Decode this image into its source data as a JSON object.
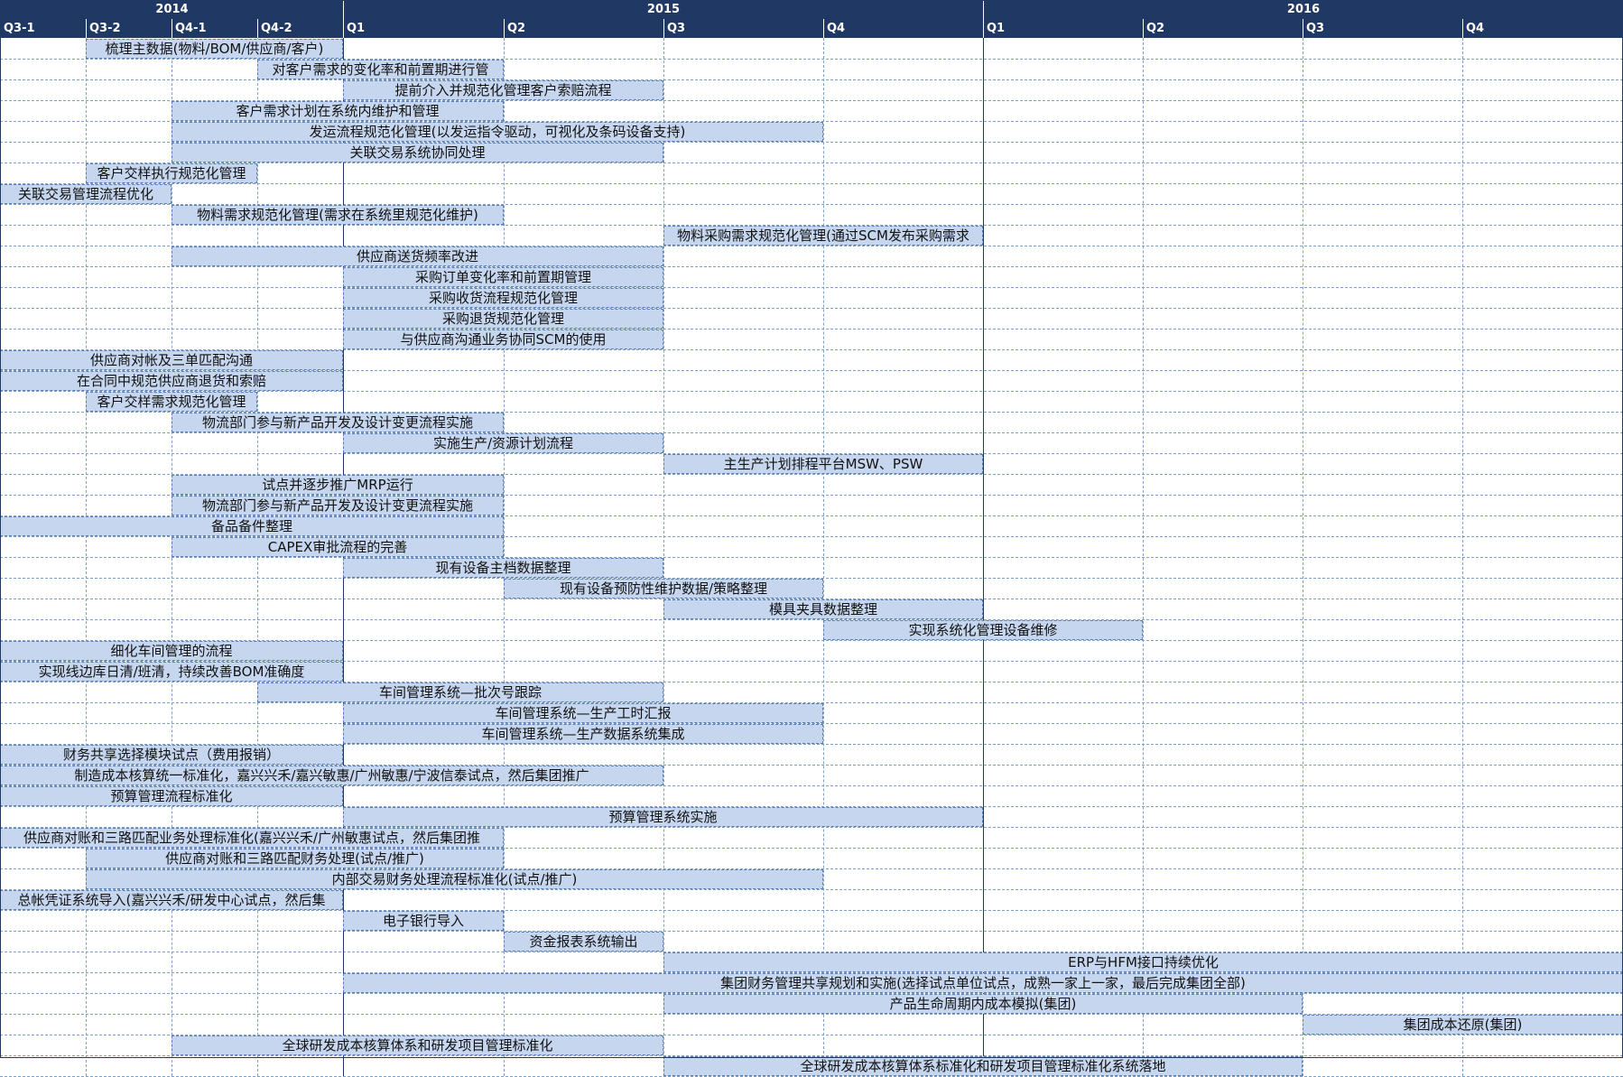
{
  "header": {
    "years": [
      {
        "label": "2014",
        "start": 0,
        "end": 4
      },
      {
        "label": "2015",
        "start": 4,
        "end": 8
      },
      {
        "label": "2016",
        "start": 8,
        "end": 12
      }
    ],
    "quarters": [
      "Q3-1",
      "Q3-2",
      "Q4-1",
      "Q4-2",
      "Q1",
      "Q2",
      "Q3",
      "Q4",
      "Q1",
      "Q2",
      "Q3",
      "Q4"
    ]
  },
  "colors": {
    "header_bg": "#1f3864",
    "bar_fill": "#c5d6ee",
    "bar_border": "#5a7fb0",
    "grid": "#7fa0c8"
  },
  "tasks": [
    {
      "label": "梳理主数据(物料/BOM/供应商/客户)",
      "start": 1,
      "end": 4
    },
    {
      "label": "对客户需求的变化率和前置期进行管",
      "start": 3,
      "end": 5
    },
    {
      "label": "提前介入并规范化管理客户索赔流程",
      "start": 4,
      "end": 6
    },
    {
      "label": "客户需求计划在系统内维护和管理",
      "start": 2,
      "end": 5
    },
    {
      "label": "发运流程规范化管理(以发运指令驱动，可视化及条码设备支持)",
      "start": 2,
      "end": 7
    },
    {
      "label": "关联交易系统协同处理",
      "start": 2,
      "end": 6
    },
    {
      "label": "客户交样执行规范化管理",
      "start": 1,
      "end": 3
    },
    {
      "label": "关联交易管理流程优化",
      "start": 0,
      "end": 2
    },
    {
      "label": "物料需求规范化管理(需求在系统里规范化维护)",
      "start": 2,
      "end": 5
    },
    {
      "label": "物料采购需求规范化管理(通过SCM发布采购需求",
      "start": 6,
      "end": 8
    },
    {
      "label": "供应商送货频率改进",
      "start": 2,
      "end": 6
    },
    {
      "label": "采购订单变化率和前置期管理",
      "start": 4,
      "end": 6
    },
    {
      "label": "采购收货流程规范化管理",
      "start": 4,
      "end": 6
    },
    {
      "label": "采购退货规范化管理",
      "start": 4,
      "end": 6
    },
    {
      "label": "与供应商沟通业务协同SCM的使用",
      "start": 4,
      "end": 6
    },
    {
      "label": "供应商对帐及三单匹配沟通",
      "start": 0,
      "end": 4
    },
    {
      "label": "在合同中规范供应商退货和索赔",
      "start": 0,
      "end": 4
    },
    {
      "label": "客户交样需求规范化管理",
      "start": 1,
      "end": 3
    },
    {
      "label": "物流部门参与新产品开发及设计变更流程实施",
      "start": 2,
      "end": 5
    },
    {
      "label": "实施生产/资源计划流程",
      "start": 4,
      "end": 6
    },
    {
      "label": "主生产计划排程平台MSW、PSW",
      "start": 6,
      "end": 8
    },
    {
      "label": "试点并逐步推广MRP运行",
      "start": 2,
      "end": 5
    },
    {
      "label": "物流部门参与新产品开发及设计变更流程实施",
      "start": 2,
      "end": 5
    },
    {
      "label": "备品备件整理",
      "start": 0,
      "end": 5
    },
    {
      "label": "CAPEX审批流程的完善",
      "start": 2,
      "end": 5
    },
    {
      "label": "现有设备主档数据整理",
      "start": 4,
      "end": 6
    },
    {
      "label": "现有设备预防性维护数据/策略整理",
      "start": 5,
      "end": 7
    },
    {
      "label": "模具夹具数据整理",
      "start": 6,
      "end": 8
    },
    {
      "label": "实现系统化管理设备维修",
      "start": 7,
      "end": 9
    },
    {
      "label": "细化车间管理的流程",
      "start": 0,
      "end": 4
    },
    {
      "label": "实现线边库日清/班清，持续改善BOM准确度",
      "start": 0,
      "end": 4
    },
    {
      "label": "车间管理系统—批次号跟踪",
      "start": 3,
      "end": 6
    },
    {
      "label": "车间管理系统—生产工时汇报",
      "start": 4,
      "end": 7
    },
    {
      "label": "车间管理系统—生产数据系统集成",
      "start": 4,
      "end": 7
    },
    {
      "label": "财务共享选择模块试点（费用报销）",
      "start": 0,
      "end": 4
    },
    {
      "label": "制造成本核算统一标准化，嘉兴兴禾/嘉兴敏惠/广州敏惠/宁波信泰试点，然后集团推广",
      "start": 0,
      "end": 6
    },
    {
      "label": "预算管理流程标准化",
      "start": 0,
      "end": 4
    },
    {
      "label": "预算管理系统实施",
      "start": 4,
      "end": 8
    },
    {
      "label": "供应商对账和三路匹配业务处理标准化(嘉兴兴禾/广州敏惠试点，然后集团推",
      "start": 0,
      "end": 5
    },
    {
      "label": "供应商对账和三路匹配财务处理(试点/推广)",
      "start": 1,
      "end": 5
    },
    {
      "label": "内部交易财务处理流程标准化(试点/推广)",
      "start": 1,
      "end": 7
    },
    {
      "label": "总帐凭证系统导入(嘉兴兴禾/研发中心试点，然后集",
      "start": 0,
      "end": 4
    },
    {
      "label": "电子银行导入",
      "start": 4,
      "end": 5
    },
    {
      "label": "资金报表系统输出",
      "start": 5,
      "end": 6
    },
    {
      "label": "ERP与HFM接口持续优化",
      "start": 6,
      "end": 12
    },
    {
      "label": "集团财务管理共享规划和实施(选择试点单位试点，成熟一家上一家，最后完成集团全部)",
      "start": 4,
      "end": 12
    },
    {
      "label": "产品生命周期内成本模拟(集团)",
      "start": 6,
      "end": 10
    },
    {
      "label": "集团成本还原(集团)",
      "start": 10,
      "end": 12
    },
    {
      "label": "全球研发成本核算体系和研发项目管理标准化",
      "start": 2,
      "end": 6
    },
    {
      "label": "全球研发成本核算体系标准化和研发项目管理标准化系统落地",
      "start": 6,
      "end": 10
    }
  ]
}
